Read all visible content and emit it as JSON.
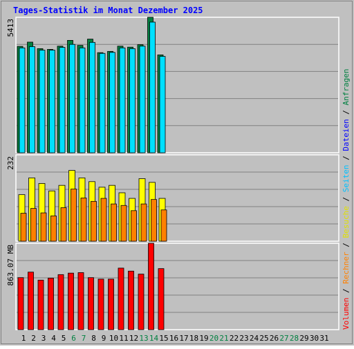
{
  "title": "Tages-Statistik im Monat Dezember 2025",
  "right_legend": {
    "top": [
      "Anfragen",
      "/",
      "Dateien",
      "/",
      "Seiten",
      "/",
      "Besuche",
      "/",
      "Rechner",
      "/",
      "Volumen"
    ]
  },
  "colors": {
    "background": "#c0c0c0",
    "frame": "#ffffff",
    "grid": "#808080",
    "title": "#0000ff",
    "anfragen": "#008040",
    "dateien": "#00e0ff",
    "seiten": "#00c0ff",
    "besuche": "#ffff00",
    "rechner": "#ff8000",
    "volumen": "#ff0000",
    "weekend": "#008040",
    "weekday": "#000000",
    "legend_anfragen": "#008040",
    "legend_dateien": "#0000ff",
    "legend_seiten": "#00c0ff",
    "legend_besuche": "#e0e000",
    "legend_rechner": "#ff8000",
    "legend_volumen": "#ff0000"
  },
  "chart_data": [
    {
      "type": "bar",
      "name": "hits-files",
      "ylabel": "5413",
      "ylim": [
        0,
        5413
      ],
      "categories": [
        "1",
        "2",
        "3",
        "4",
        "5",
        "6",
        "7",
        "8",
        "9",
        "10",
        "11",
        "12",
        "13",
        "14",
        "15",
        "16",
        "17",
        "18",
        "19",
        "20",
        "21",
        "22",
        "23",
        "24",
        "25",
        "26",
        "27",
        "28",
        "29",
        "30",
        "31"
      ],
      "weekend_days": [
        "6",
        "7",
        "13",
        "14",
        "20",
        "21",
        "27",
        "28"
      ],
      "series": [
        {
          "name": "Anfragen",
          "values": [
            4250,
            4420,
            4160,
            4130,
            4260,
            4490,
            4290,
            4540,
            4000,
            4050,
            4260,
            4220,
            4320,
            5413,
            3910,
            0,
            0,
            0,
            0,
            0,
            0,
            0,
            0,
            0,
            0,
            0,
            0,
            0,
            0,
            0,
            0
          ]
        },
        {
          "name": "Dateien",
          "values": [
            4190,
            4240,
            4100,
            4100,
            4210,
            4330,
            4190,
            4410,
            3970,
            4010,
            4190,
            4160,
            4260,
            5220,
            3850,
            0,
            0,
            0,
            0,
            0,
            0,
            0,
            0,
            0,
            0,
            0,
            0,
            0,
            0,
            0,
            0
          ]
        }
      ]
    },
    {
      "type": "bar",
      "name": "pages-visits-hosts",
      "ylabel": "232",
      "ylim": [
        0,
        232
      ],
      "series": [
        {
          "name": "Seiten",
          "values": [
            0,
            0,
            0,
            0,
            0,
            0,
            0,
            0,
            0,
            0,
            0,
            0,
            0,
            0,
            0,
            0,
            0,
            0,
            0,
            0,
            0,
            0,
            0,
            0,
            0,
            0,
            0,
            0,
            0,
            0,
            0
          ]
        },
        {
          "name": "Besuche",
          "values": [
            125,
            170,
            155,
            135,
            150,
            190,
            170,
            160,
            145,
            150,
            130,
            115,
            168,
            158,
            115,
            0,
            0,
            0,
            0,
            0,
            0,
            0,
            0,
            0,
            0,
            0,
            0,
            0,
            0,
            0,
            0
          ]
        },
        {
          "name": "Rechner",
          "values": [
            75,
            88,
            76,
            68,
            90,
            140,
            116,
            107,
            115,
            100,
            96,
            82,
            100,
            112,
            84,
            0,
            0,
            0,
            0,
            0,
            0,
            0,
            0,
            0,
            0,
            0,
            0,
            0,
            0,
            0,
            0
          ]
        }
      ]
    },
    {
      "type": "bar",
      "name": "volume",
      "ylabel": "863.07 MB",
      "ylim": [
        0,
        863.07
      ],
      "series": [
        {
          "name": "Volumen",
          "values": [
            520,
            575,
            495,
            515,
            550,
            565,
            570,
            520,
            505,
            505,
            615,
            585,
            555,
            863.07,
            610,
            0,
            0,
            0,
            0,
            0,
            0,
            0,
            0,
            0,
            0,
            0,
            0,
            0,
            0,
            0,
            0
          ]
        }
      ]
    }
  ]
}
